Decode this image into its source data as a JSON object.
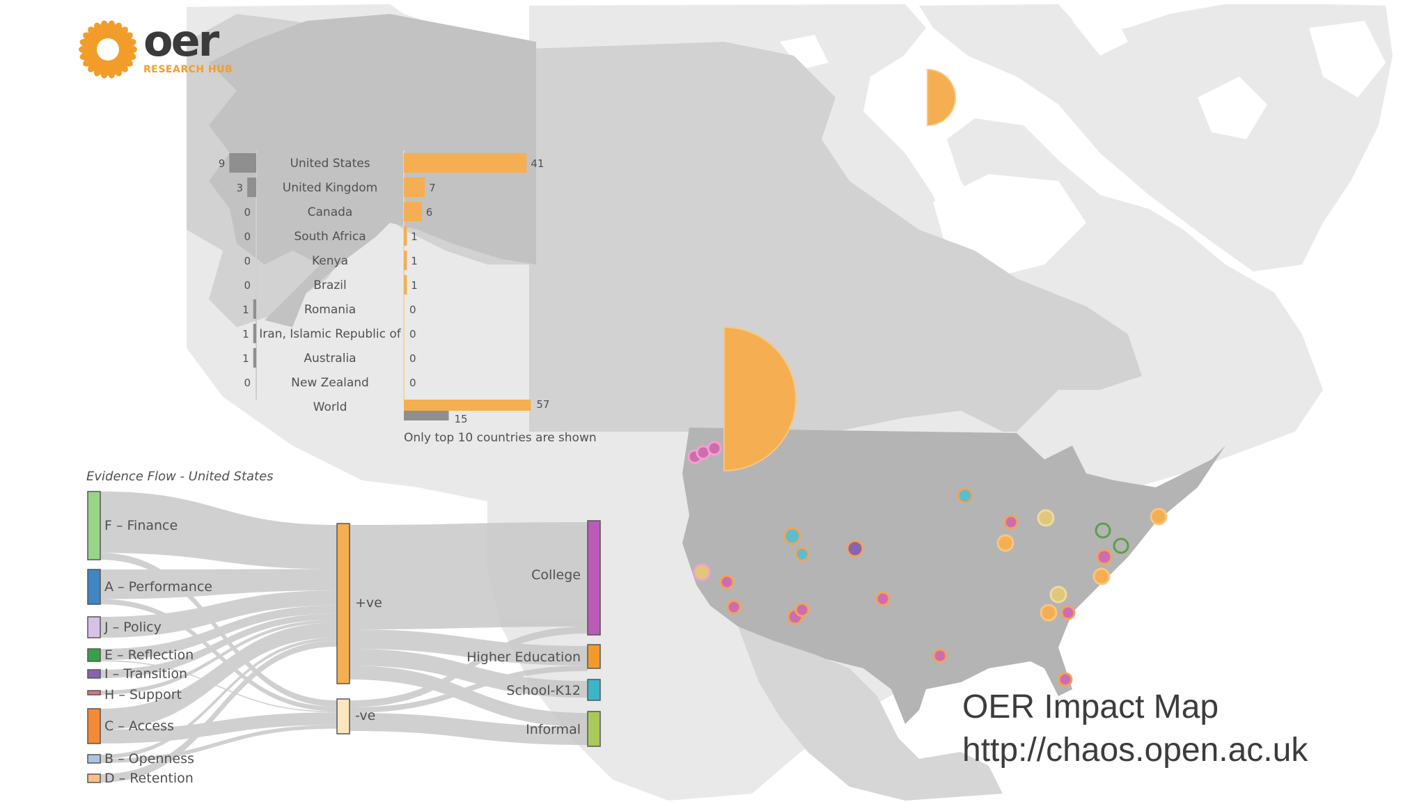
{
  "logo": {
    "word": "oer",
    "sub": "RESEARCH HUB",
    "colors": {
      "sun": "#f29d2a",
      "word": "#3a3a3a"
    }
  },
  "colors": {
    "land_light": "#e9e9e9",
    "land_mid": "#d0d0d0",
    "land_dark": "#b4b4b4",
    "orange": "#f5ae52",
    "grey": "#8f8f8f",
    "flow": "#c8c8c8"
  },
  "country_bars": {
    "rows": [
      {
        "country": "United States",
        "left": 9,
        "right": 41
      },
      {
        "country": "United Kingdom",
        "left": 3,
        "right": 7
      },
      {
        "country": "Canada",
        "left": 0,
        "right": 6
      },
      {
        "country": "South Africa",
        "left": 0,
        "right": 1
      },
      {
        "country": "Kenya",
        "left": 0,
        "right": 1
      },
      {
        "country": "Brazil",
        "left": 0,
        "right": 1
      },
      {
        "country": "Romania",
        "left": 1,
        "right": 0
      },
      {
        "country": "Iran, Islamic Republic of",
        "left": 1,
        "right": 0
      },
      {
        "country": "Australia",
        "left": 1,
        "right": 0
      },
      {
        "country": "New Zealand",
        "left": 0,
        "right": 0
      }
    ],
    "world": {
      "label": "World",
      "right": 57,
      "left": 15
    },
    "note": "Only top 10 countries are shown"
  },
  "sankey": {
    "title": "Evidence Flow - United States",
    "sources": [
      {
        "label": "F – Finance",
        "color": "#9ad38a"
      },
      {
        "label": "A – Performance",
        "color": "#3f86c3"
      },
      {
        "label": "J – Policy",
        "color": "#d7c2e6"
      },
      {
        "label": "E – Reflection",
        "color": "#3aa046"
      },
      {
        "label": "I – Transition",
        "color": "#8a63b0"
      },
      {
        "label": "H – Support",
        "color": "#e2737a"
      },
      {
        "label": "C – Access",
        "color": "#f58a35"
      },
      {
        "label": "B – Openness",
        "color": "#a9c4e2"
      },
      {
        "label": "D – Retention",
        "color": "#f7bf86"
      }
    ],
    "middle": [
      {
        "label": "+ve",
        "color": "#f5ae52"
      },
      {
        "label": "-ve",
        "color": "#fbe6bf"
      }
    ],
    "targets": [
      {
        "label": "College",
        "color": "#b85cb8"
      },
      {
        "label": "Higher Education",
        "color": "#f39a2e"
      },
      {
        "label": "School-K12",
        "color": "#3db5c9"
      },
      {
        "label": "Informal",
        "color": "#a9c95c"
      }
    ]
  },
  "impact": {
    "title": "OER Impact Map",
    "url": "http://chaos.open.ac.uk"
  }
}
